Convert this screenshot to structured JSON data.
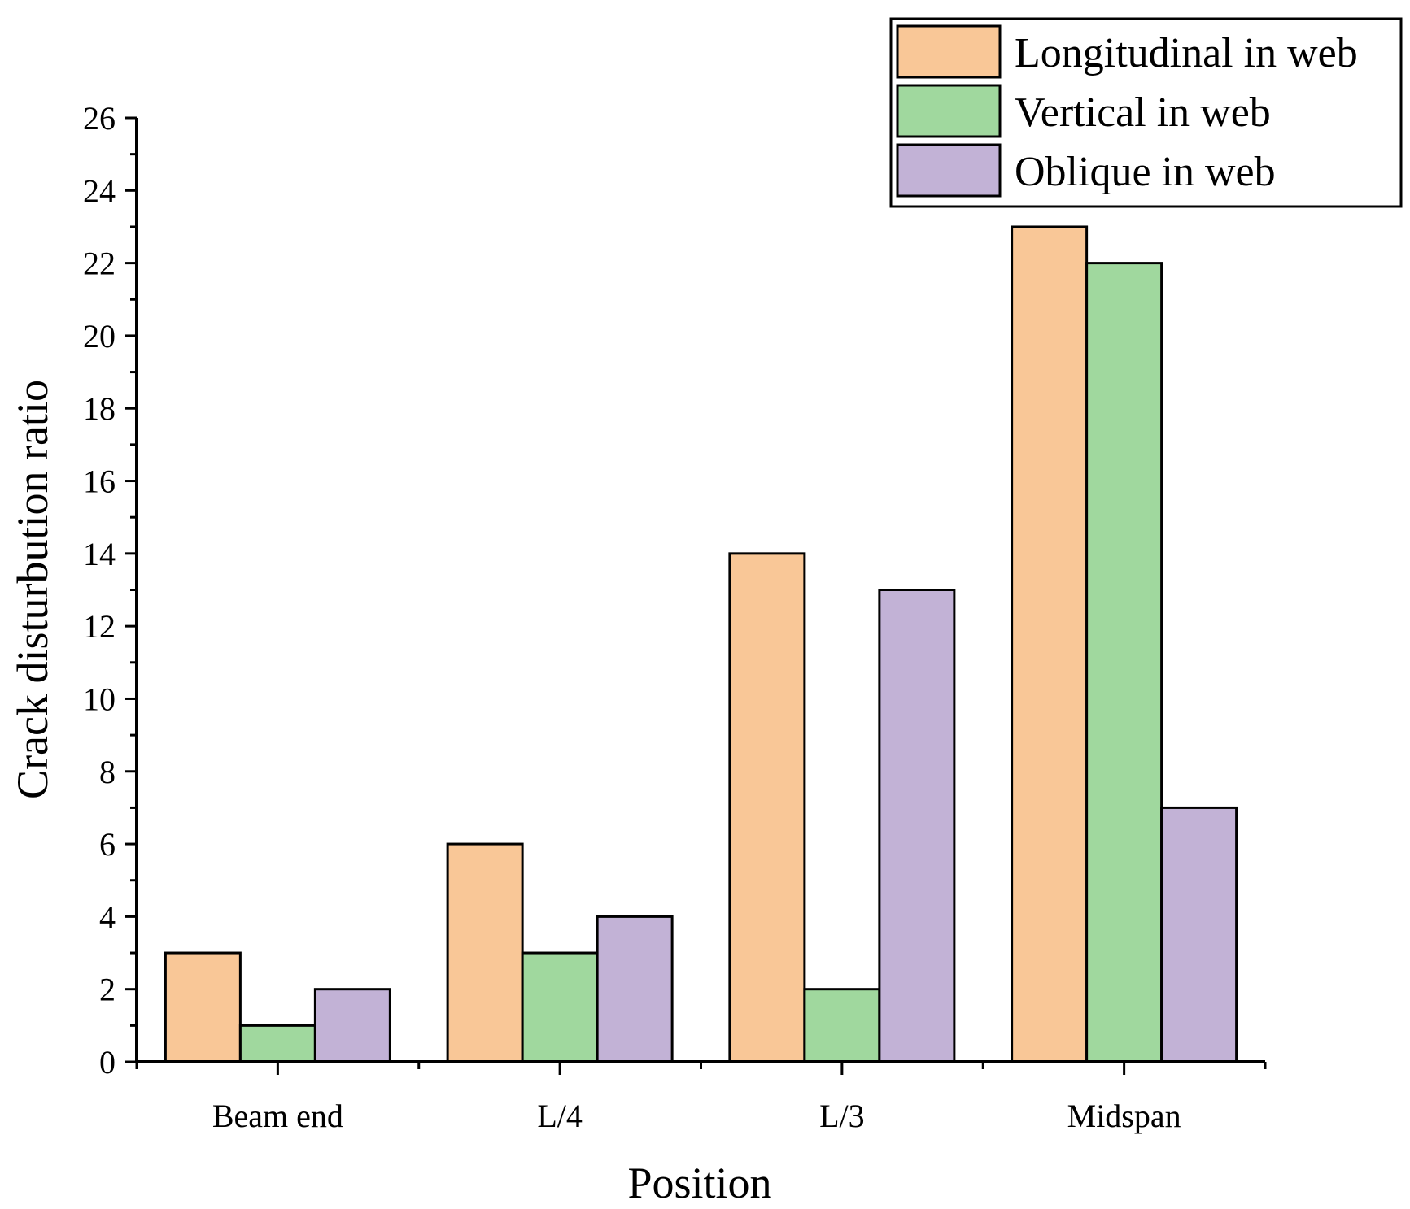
{
  "chart_data": {
    "type": "bar",
    "title": "",
    "xlabel": "Position",
    "ylabel": "Crack disturbution ratio",
    "categories": [
      "Beam end",
      "L/4",
      "L/3",
      "Midspan"
    ],
    "series": [
      {
        "name": "Longitudinal in web",
        "color": "#F9C797",
        "values": [
          3,
          6,
          14,
          23
        ]
      },
      {
        "name": "Vertical in web",
        "color": "#A0D89E",
        "values": [
          1,
          3,
          2,
          22
        ]
      },
      {
        "name": "Oblique in web",
        "color": "#C2B2D6",
        "values": [
          2,
          4,
          13,
          7
        ]
      }
    ],
    "ylim": [
      0,
      26
    ],
    "yticks": [
      0,
      2,
      4,
      6,
      8,
      10,
      12,
      14,
      16,
      18,
      20,
      22,
      24,
      26
    ],
    "grid": false,
    "legend_position": "top-right"
  }
}
